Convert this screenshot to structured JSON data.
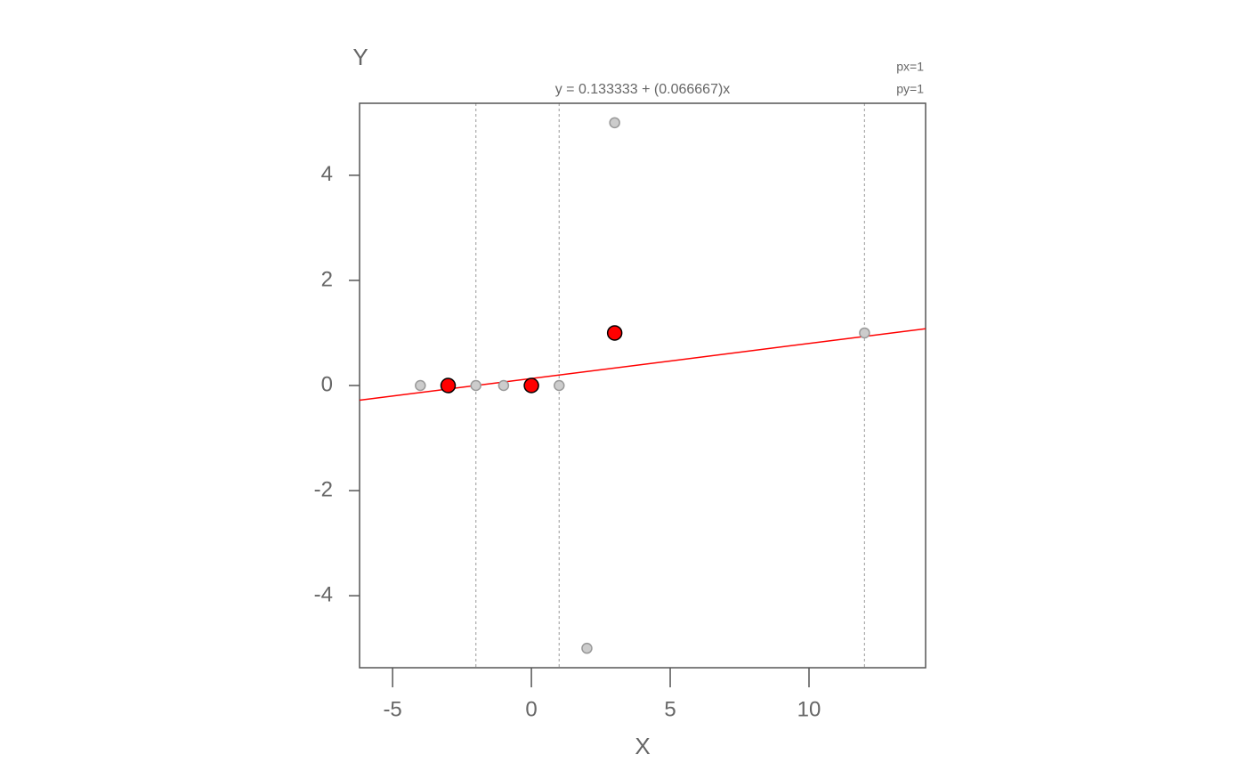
{
  "chart_data": {
    "type": "scatter",
    "xlabel": "X",
    "ylabel": "Y",
    "xlim": [
      -6.19,
      14.2
    ],
    "ylim": [
      -5.37,
      5.37
    ],
    "xticks": [
      -5,
      0,
      5,
      10
    ],
    "yticks": [
      -4,
      -2,
      0,
      2,
      4
    ],
    "series": [
      {
        "color": "#cccccc",
        "stroke": "#999999",
        "x": [
          -4,
          -2,
          -1,
          1,
          3,
          2,
          12
        ],
        "values": [
          0,
          0,
          0,
          0,
          5,
          -5,
          1
        ]
      },
      {
        "color": "#ff0000",
        "stroke": "#000000",
        "x": [
          -3,
          0,
          3
        ],
        "values": [
          0,
          0,
          1
        ]
      }
    ],
    "vlines": [
      -2,
      1,
      12
    ],
    "regression": {
      "label": "y = 0.133333 + (0.066667)x",
      "intercept": 0.133333,
      "slope": 0.066667,
      "color": "#ff0000"
    },
    "annotations": [
      "px=1",
      "py=1"
    ]
  }
}
